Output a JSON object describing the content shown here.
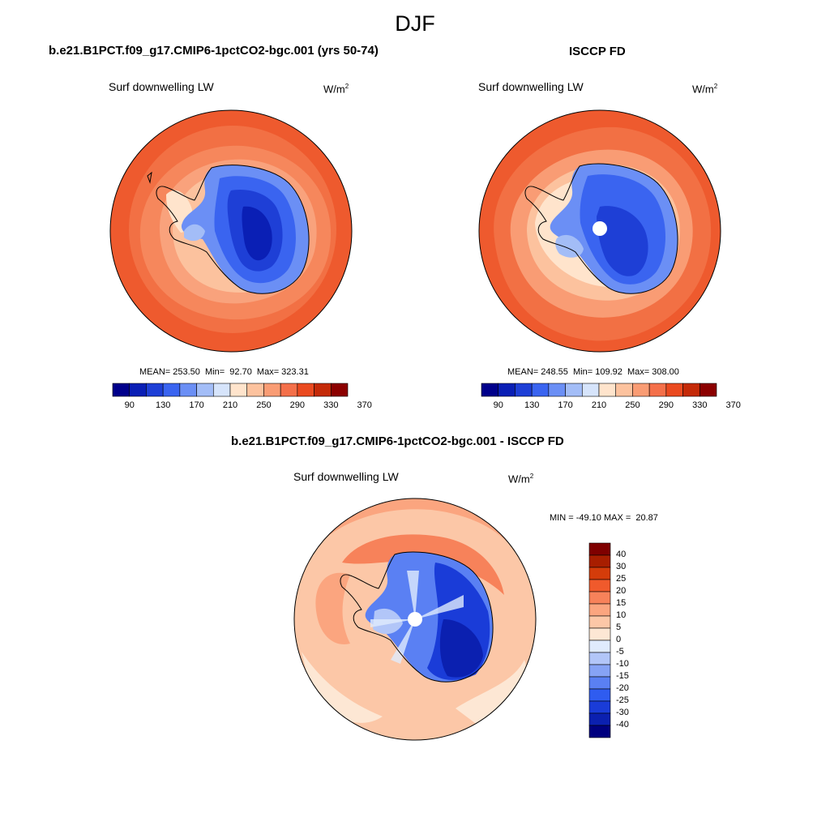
{
  "figure": {
    "title": "DJF",
    "colors": {
      "model_palette": [
        "#00008b",
        "#0a1fb5",
        "#1e3fd6",
        "#3a64f0",
        "#6b8ff5",
        "#a3bdf7",
        "#d6e4fb",
        "#ffe4cc",
        "#fcc29e",
        "#f99c74",
        "#f4704a",
        "#ea4a20",
        "#c42a08",
        "#8b0000"
      ],
      "diff_palette": [
        "#00007f",
        "#0b20b0",
        "#1a3cd8",
        "#2f5cf0",
        "#5a80f3",
        "#86a3f5",
        "#b2c6f8",
        "#e0ebfd",
        "#fde7d4",
        "#fcc7a7",
        "#fba57f",
        "#f7825a",
        "#f05a2c",
        "#d43c0a",
        "#a81e00",
        "#7f0000"
      ]
    }
  },
  "panels": {
    "model": {
      "title": "b.e21.B1PCT.f09_g17.CMIP6-1pctCO2-bgc.001 (yrs 50-74)",
      "variable": "Surf downwelling LW",
      "units_base": "W/m",
      "units_exp": "2",
      "stats": "MEAN= 253.50  Min=  92.70  Max= 323.31",
      "colorbar_ticks": [
        "90",
        "130",
        "170",
        "210",
        "250",
        "290",
        "330",
        "370"
      ]
    },
    "obs": {
      "title": "ISCCP FD",
      "variable": "Surf downwelling LW",
      "units_base": "W/m",
      "units_exp": "2",
      "stats": "MEAN= 248.55  Min= 109.92  Max= 308.00",
      "colorbar_ticks": [
        "90",
        "130",
        "170",
        "210",
        "250",
        "290",
        "330",
        "370"
      ]
    },
    "diff": {
      "title": "b.e21.B1PCT.f09_g17.CMIP6-1pctCO2-bgc.001 - ISCCP FD",
      "variable": "Surf downwelling LW",
      "units_base": "W/m",
      "units_exp": "2",
      "stats": "MIN = -49.10 MAX =  20.87",
      "colorbar_labels": [
        "40",
        "30",
        "25",
        "20",
        "15",
        "10",
        "5",
        "0",
        "-5",
        "-10",
        "-15",
        "-20",
        "-25",
        "-30",
        "-40"
      ]
    }
  }
}
